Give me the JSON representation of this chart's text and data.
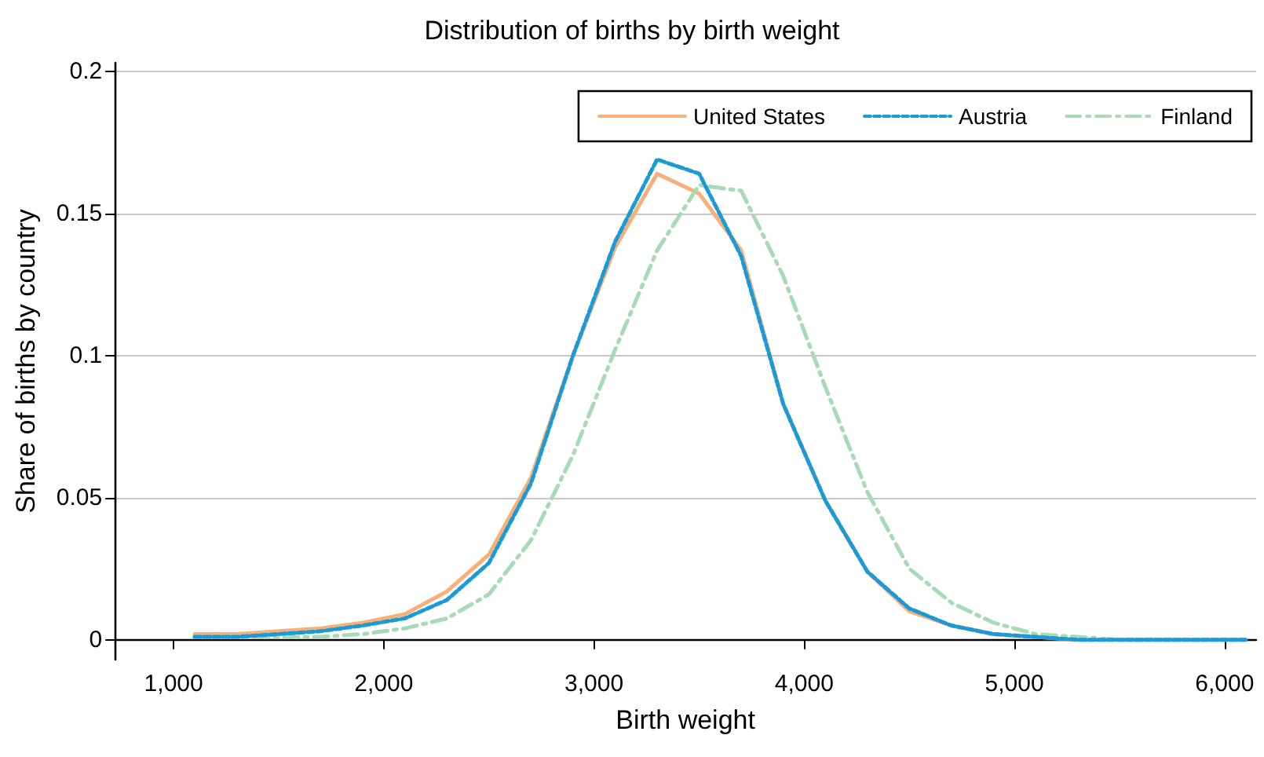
{
  "chart_data": {
    "type": "line",
    "title": "Distribution of births by birth weight",
    "xlabel": "Birth weight",
    "ylabel": "Share of births by country",
    "x": [
      1100,
      1300,
      1500,
      1700,
      1900,
      2100,
      2300,
      2500,
      2700,
      2900,
      3100,
      3300,
      3500,
      3700,
      3900,
      4100,
      4300,
      4500,
      4700,
      4900,
      5100,
      5300,
      5500,
      5700,
      5900,
      6100
    ],
    "series": [
      {
        "name": "United States",
        "color": "#f8b07a",
        "line_style": "solid",
        "values": [
          0.002,
          0.002,
          0.003,
          0.004,
          0.006,
          0.009,
          0.017,
          0.03,
          0.057,
          0.1,
          0.138,
          0.164,
          0.157,
          0.137,
          0.083,
          0.049,
          0.024,
          0.01,
          0.005,
          0.002,
          0.001,
          0,
          0,
          0,
          0,
          0
        ]
      },
      {
        "name": "Austria",
        "color": "#1a9ad6",
        "line_style": "dashed",
        "values": [
          0.001,
          0.001,
          0.002,
          0.003,
          0.005,
          0.0075,
          0.014,
          0.027,
          0.055,
          0.1,
          0.14,
          0.169,
          0.164,
          0.135,
          0.083,
          0.049,
          0.024,
          0.011,
          0.005,
          0.002,
          0.001,
          0,
          0,
          0,
          0,
          0
        ]
      },
      {
        "name": "Finland",
        "color": "#a6dbb5",
        "line_style": "dashdot",
        "values": [
          0.001,
          0.001,
          0.001,
          0.001,
          0.002,
          0.004,
          0.0075,
          0.016,
          0.035,
          0.065,
          0.102,
          0.137,
          0.16,
          0.158,
          0.128,
          0.089,
          0.052,
          0.025,
          0.013,
          0.006,
          0.002,
          0.001,
          0,
          0,
          0,
          0
        ]
      }
    ],
    "xlim": [
      720,
      6150
    ],
    "ylim": [
      -0.007,
      0.203
    ],
    "xticks": [
      {
        "value": 1000,
        "label": "1,000"
      },
      {
        "value": 2000,
        "label": "2,000"
      },
      {
        "value": 3000,
        "label": "3,000"
      },
      {
        "value": 4000,
        "label": "4,000"
      },
      {
        "value": 5000,
        "label": "5,000"
      },
      {
        "value": 6000,
        "label": "6,000"
      }
    ],
    "yticks": [
      0,
      0.05,
      0.1,
      0.15,
      0.2
    ],
    "grid": "y",
    "legend": "top right",
    "marker": "none"
  }
}
